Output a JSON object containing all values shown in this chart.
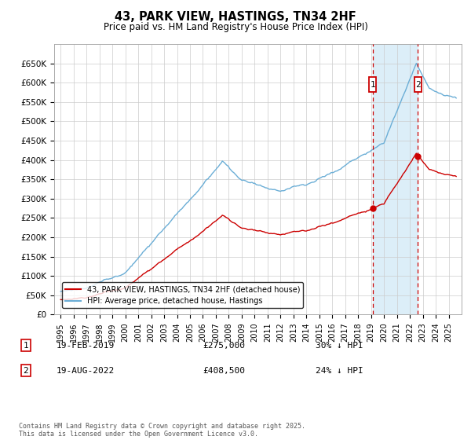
{
  "title": "43, PARK VIEW, HASTINGS, TN34 2HF",
  "subtitle": "Price paid vs. HM Land Registry's House Price Index (HPI)",
  "legend_line1": "43, PARK VIEW, HASTINGS, TN34 2HF (detached house)",
  "legend_line2": "HPI: Average price, detached house, Hastings",
  "annotation1_date": "19-FEB-2019",
  "annotation1_price": "£275,000",
  "annotation1_hpi": "30% ↓ HPI",
  "annotation2_date": "19-AUG-2022",
  "annotation2_price": "£408,500",
  "annotation2_hpi": "24% ↓ HPI",
  "footer": "Contains HM Land Registry data © Crown copyright and database right 2025.\nThis data is licensed under the Open Government Licence v3.0.",
  "hpi_color": "#6baed6",
  "price_color": "#cc0000",
  "dashed_color": "#cc0000",
  "shaded_color": "#dceef8",
  "ylim": [
    0,
    700000
  ],
  "yticks": [
    0,
    50000,
    100000,
    150000,
    200000,
    250000,
    300000,
    350000,
    400000,
    450000,
    500000,
    550000,
    600000,
    650000
  ],
  "ytick_labels": [
    "£0",
    "£50K",
    "£100K",
    "£150K",
    "£200K",
    "£250K",
    "£300K",
    "£350K",
    "£400K",
    "£450K",
    "£500K",
    "£550K",
    "£600K",
    "£650K"
  ],
  "sale1_x": 2019.12,
  "sale2_x": 2022.63,
  "sale1_y": 275000,
  "sale2_y": 408500,
  "xlim_left": 1994.5,
  "xlim_right": 2026.0
}
